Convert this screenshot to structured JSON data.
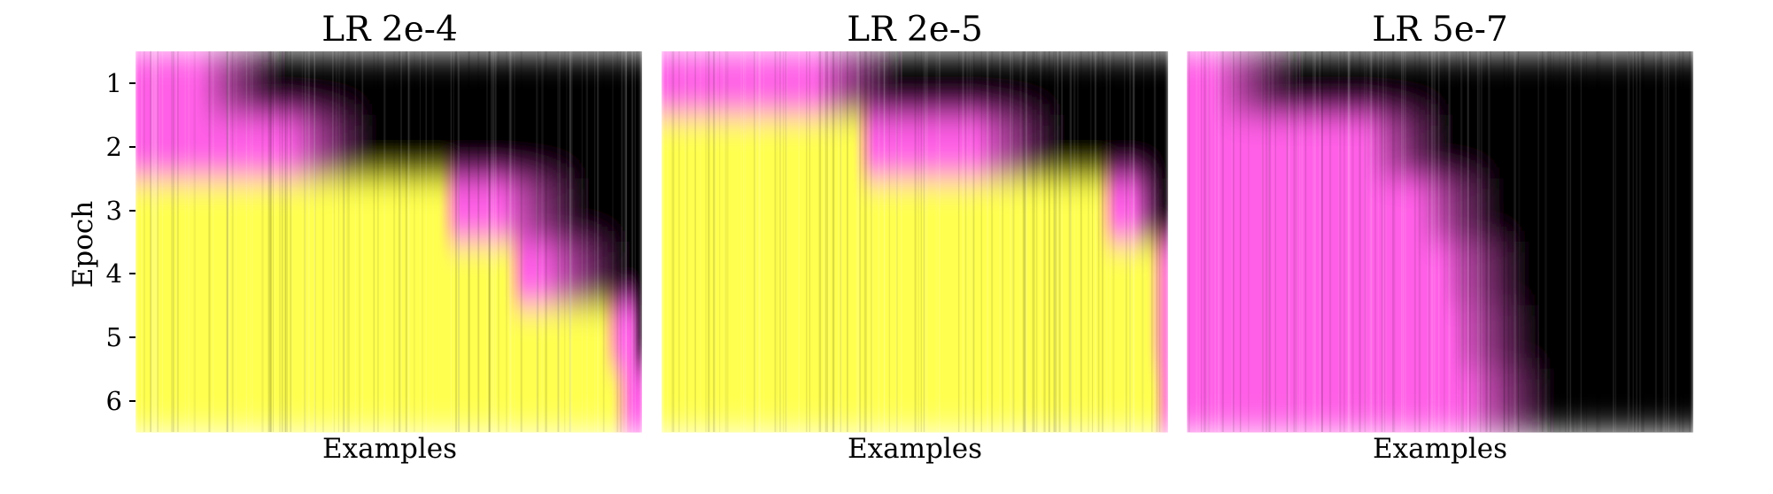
{
  "chart_data": [
    {
      "type": "heatmap",
      "title": "LR 2e-4",
      "xlabel": "Examples",
      "ylabel": "Epoch",
      "y_ticks": [
        "1",
        "2",
        "3",
        "4",
        "5",
        "6"
      ],
      "x_ticks": [],
      "colormap": [
        "#000000",
        "#ff5fe6",
        "#ffff50"
      ],
      "row_profiles": [
        {
          "epoch": 1,
          "yellow_until": 0.0,
          "pink_until": 0.12
        },
        {
          "epoch": 2,
          "yellow_until": 0.0,
          "pink_until": 0.3
        },
        {
          "epoch": 3,
          "yellow_until": 0.62,
          "pink_until": 0.72
        },
        {
          "epoch": 4,
          "yellow_until": 0.75,
          "pink_until": 0.8
        },
        {
          "epoch": 5,
          "yellow_until": 0.94,
          "pink_until": 0.97
        },
        {
          "epoch": 6,
          "yellow_until": 0.96,
          "pink_until": 0.99
        }
      ]
    },
    {
      "type": "heatmap",
      "title": "LR 2e-5",
      "xlabel": "Examples",
      "ylabel": "",
      "y_ticks": [],
      "x_ticks": [],
      "colormap": [
        "#000000",
        "#ff5fe6",
        "#ffff50"
      ],
      "row_profiles": [
        {
          "epoch": 1,
          "yellow_until": 0.0,
          "pink_until": 0.3
        },
        {
          "epoch": 2,
          "yellow_until": 0.4,
          "pink_until": 0.62
        },
        {
          "epoch": 3,
          "yellow_until": 0.88,
          "pink_until": 0.93
        },
        {
          "epoch": 4,
          "yellow_until": 0.98,
          "pink_until": 0.99
        },
        {
          "epoch": 5,
          "yellow_until": 0.98,
          "pink_until": 1.0
        },
        {
          "epoch": 6,
          "yellow_until": 0.99,
          "pink_until": 1.0
        }
      ]
    },
    {
      "type": "heatmap",
      "title": "LR 5e-7",
      "xlabel": "Examples",
      "ylabel": "",
      "y_ticks": [],
      "x_ticks": [],
      "colormap": [
        "#000000",
        "#ff5fe6",
        "#ffff50"
      ],
      "row_profiles": [
        {
          "epoch": 1,
          "yellow_until": 0.0,
          "pink_until": 0.05
        },
        {
          "epoch": 2,
          "yellow_until": 0.0,
          "pink_until": 0.35
        },
        {
          "epoch": 3,
          "yellow_until": 0.0,
          "pink_until": 0.45
        },
        {
          "epoch": 4,
          "yellow_until": 0.0,
          "pink_until": 0.5
        },
        {
          "epoch": 5,
          "yellow_until": 0.0,
          "pink_until": 0.52
        },
        {
          "epoch": 6,
          "yellow_until": 0.0,
          "pink_until": 0.55
        }
      ]
    }
  ]
}
